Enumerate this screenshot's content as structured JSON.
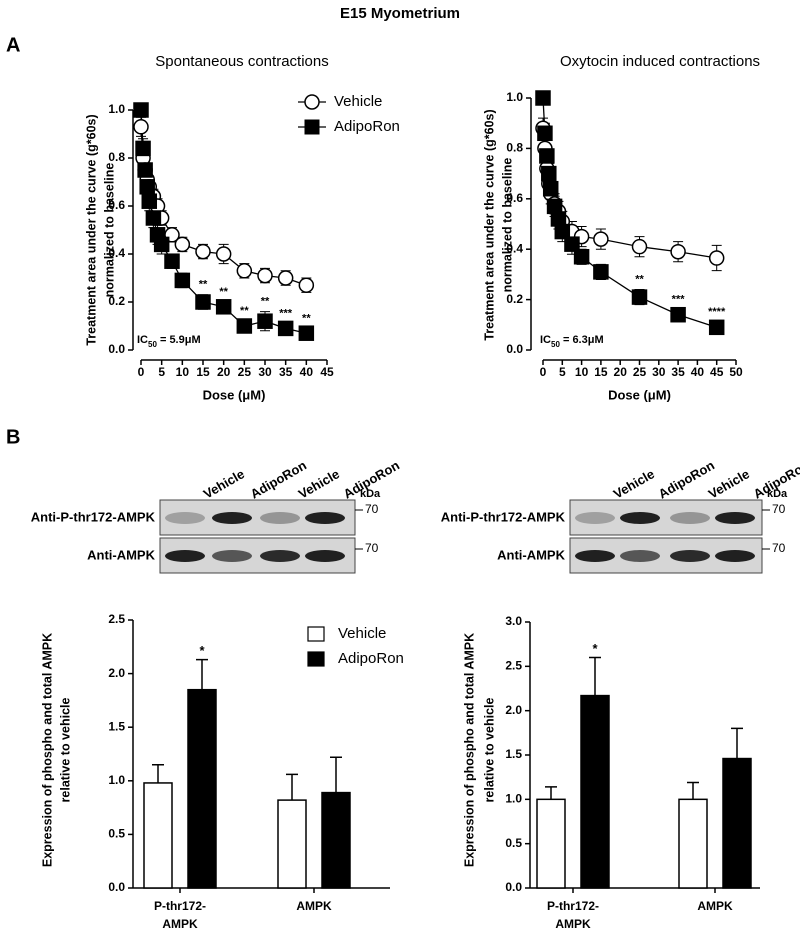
{
  "figure_title": "E15 Myometrium",
  "panel_labels": [
    "A",
    "B"
  ],
  "blots": [
    {
      "lanes": [
        "Vehicle",
        "AdipoRon",
        "Vehicle",
        "AdipoRon"
      ],
      "unit": "kDa",
      "rows": [
        "Anti-P-thr172-AMPK",
        "Anti-AMPK"
      ],
      "markers": [
        "70",
        "70"
      ]
    },
    {
      "lanes": [
        "Vehicle",
        "AdipoRon",
        "Vehicle",
        "AdipoRon"
      ],
      "unit": "kDa",
      "rows": [
        "Anti-P-thr172-AMPK",
        "Anti-AMPK"
      ],
      "markers": [
        "70",
        "70"
      ]
    }
  ],
  "chart_data": [
    {
      "type": "line",
      "title": "Spontaneous contractions",
      "x_label": "Dose (μM)",
      "y_label": [
        "Treatment area under the curve (g*60s)",
        "normalized to baseline"
      ],
      "annotation": {
        "prefix": "IC",
        "sub": "50",
        "text": " = 5.9μM"
      },
      "xlim": [
        0,
        45
      ],
      "xticks": [
        0,
        5,
        10,
        15,
        20,
        25,
        30,
        35,
        40,
        45
      ],
      "ylim": [
        0,
        1
      ],
      "yticks": [
        {
          "value": 0,
          "label": "0.0"
        },
        0.2,
        0.4,
        0.6,
        0.8,
        {
          "value": 1,
          "label": "1.0"
        }
      ],
      "legend": "top-right",
      "x": [
        0,
        0.5,
        1,
        1.5,
        2,
        3,
        4,
        5,
        7.5,
        10,
        15,
        20,
        25,
        30,
        35,
        40
      ],
      "series": [
        {
          "name": "Vehicle",
          "color": "#ffffff",
          "marker": "circle",
          "values": [
            0.93,
            0.8,
            0.75,
            0.71,
            0.68,
            0.64,
            0.6,
            0.55,
            0.48,
            0.44,
            0.41,
            0.4,
            0.33,
            0.31,
            0.3,
            0.27
          ],
          "errors": [
            0.04,
            0.03,
            0.03,
            0.03,
            0.03,
            0.03,
            0.03,
            0.03,
            0.03,
            0.03,
            0.03,
            0.04,
            0.03,
            0.03,
            0.03,
            0.03
          ]
        },
        {
          "name": "AdipoRon",
          "color": "#000000",
          "marker": "square",
          "values": [
            1.0,
            0.84,
            0.75,
            0.68,
            0.62,
            0.55,
            0.48,
            0.44,
            0.37,
            0.29,
            0.2,
            0.18,
            0.1,
            0.12,
            0.09,
            0.07
          ],
          "errors": [
            0.02,
            0.04,
            0.04,
            0.04,
            0.04,
            0.04,
            0.04,
            0.04,
            0.03,
            0.03,
            0.03,
            0.02,
            0.02,
            0.04,
            0.02,
            0.02
          ],
          "significance": [
            null,
            null,
            null,
            null,
            null,
            null,
            null,
            null,
            null,
            null,
            "**",
            "**",
            "**",
            "**",
            "***",
            "**"
          ]
        }
      ]
    },
    {
      "type": "line",
      "title": "Oxytocin induced contractions",
      "x_label": "Dose (μM)",
      "y_label": [
        "Treatment area under the curve (g*60s)",
        "normalized to baseline"
      ],
      "annotation": {
        "prefix": "IC",
        "sub": "50",
        "text": " = 6.3μM"
      },
      "xlim": [
        0,
        50
      ],
      "xticks": [
        0,
        5,
        10,
        15,
        20,
        25,
        30,
        35,
        40,
        45,
        50
      ],
      "ylim": [
        0,
        1
      ],
      "yticks": [
        {
          "value": 0,
          "label": "0.0"
        },
        0.2,
        0.4,
        0.6,
        0.8,
        {
          "value": 1,
          "label": "1.0"
        }
      ],
      "legend": "none",
      "x": [
        0,
        0.5,
        1,
        1.5,
        2,
        3,
        4,
        5,
        7.5,
        10,
        15,
        25,
        35,
        45
      ],
      "series": [
        {
          "name": "Vehicle",
          "color": "#ffffff",
          "marker": "circle",
          "values": [
            0.88,
            0.8,
            0.72,
            0.66,
            0.62,
            0.58,
            0.55,
            0.51,
            0.47,
            0.45,
            0.44,
            0.41,
            0.39,
            0.365
          ],
          "errors": [
            0.04,
            0.04,
            0.04,
            0.04,
            0.04,
            0.04,
            0.04,
            0.04,
            0.04,
            0.04,
            0.04,
            0.04,
            0.04,
            0.05
          ]
        },
        {
          "name": "AdipoRon",
          "color": "#000000",
          "marker": "square",
          "values": [
            1.0,
            0.86,
            0.77,
            0.7,
            0.64,
            0.57,
            0.52,
            0.47,
            0.42,
            0.37,
            0.31,
            0.21,
            0.14,
            0.09
          ],
          "errors": [
            0.02,
            0.04,
            0.04,
            0.04,
            0.04,
            0.04,
            0.04,
            0.04,
            0.04,
            0.03,
            0.03,
            0.03,
            0.02,
            0.02
          ],
          "significance": [
            null,
            null,
            null,
            null,
            null,
            null,
            null,
            null,
            null,
            null,
            null,
            "**",
            "***",
            "****"
          ]
        }
      ]
    },
    {
      "type": "bar",
      "y_label": [
        "Expression of phospho and total AMPK",
        "relative to vehicle"
      ],
      "categories": [
        [
          "P-thr172-",
          "AMPK"
        ],
        [
          "AMPK"
        ]
      ],
      "ylim": [
        0,
        2.5
      ],
      "yticks": [
        {
          "value": 0,
          "label": "0.0"
        },
        0.5,
        {
          "value": 1,
          "label": "1.0"
        },
        1.5,
        {
          "value": 2,
          "label": "2.0"
        },
        2.5
      ],
      "legend": "top-right",
      "series": [
        {
          "name": "Vehicle",
          "color": "#ffffff",
          "values": [
            0.98,
            0.82
          ],
          "errors": [
            0.17,
            0.24
          ]
        },
        {
          "name": "AdipoRon",
          "color": "#000000",
          "values": [
            1.85,
            0.89
          ],
          "errors": [
            0.28,
            0.33
          ],
          "significance": [
            "*",
            null
          ]
        }
      ]
    },
    {
      "type": "bar",
      "y_label": [
        "Expression of phospho and total AMPK",
        "relative to vehicle"
      ],
      "categories": [
        [
          "P-thr172-",
          "AMPK"
        ],
        [
          "AMPK"
        ]
      ],
      "ylim": [
        0,
        3
      ],
      "yticks": [
        {
          "value": 0,
          "label": "0.0"
        },
        0.5,
        {
          "value": 1,
          "label": "1.0"
        },
        1.5,
        {
          "value": 2,
          "label": "2.0"
        },
        2.5,
        {
          "value": 3,
          "label": "3.0"
        }
      ],
      "legend": "none",
      "series": [
        {
          "name": "Vehicle",
          "color": "#ffffff",
          "values": [
            1.0,
            1.0
          ],
          "errors": [
            0.14,
            0.19
          ]
        },
        {
          "name": "AdipoRon",
          "color": "#000000",
          "values": [
            2.17,
            1.46
          ],
          "errors": [
            0.43,
            0.34
          ],
          "significance": [
            "*",
            null
          ]
        }
      ]
    }
  ]
}
